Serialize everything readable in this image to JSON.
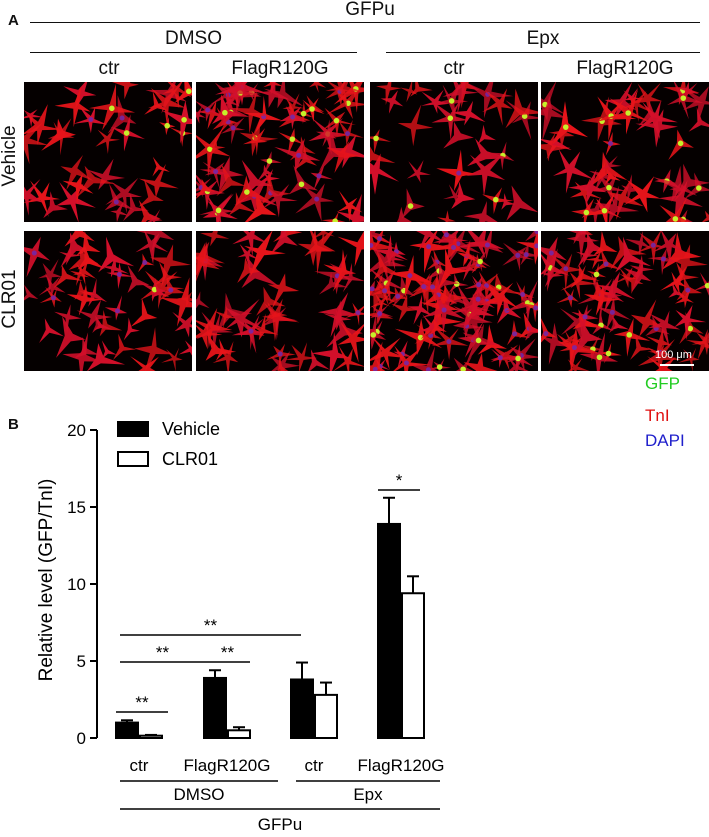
{
  "panel_a": {
    "letter": "A",
    "top_header": "GFPu",
    "treatment_groups": [
      "DMSO",
      "Epx"
    ],
    "column_labels": [
      "ctr",
      "FlagR120G",
      "ctr",
      "FlagR120G"
    ],
    "row_labels": [
      "Vehicle",
      "CLR01"
    ],
    "scale_bar": "100 μm",
    "stain_legend": [
      {
        "label": "GFP",
        "color": "#22cc22"
      },
      {
        "label": "TnI",
        "color": "#e01010"
      },
      {
        "label": "DAPI",
        "color": "#2020cc"
      }
    ]
  },
  "panel_b": {
    "letter": "B"
  },
  "chart_data": {
    "type": "bar",
    "ylabel": "Relative level (GFP/TnI)",
    "ylim": [
      0,
      20
    ],
    "yticks": [
      0,
      5,
      10,
      15,
      20
    ],
    "categories": [
      "ctr",
      "FlagR120G",
      "ctr",
      "FlagR120G"
    ],
    "group_labels": [
      "DMSO",
      "Epx"
    ],
    "outer_label": "GFPu",
    "legend_position": "top-left",
    "series": [
      {
        "name": "Vehicle",
        "fill": "#000000",
        "values": [
          1.0,
          3.9,
          3.8,
          13.9
        ],
        "errors": [
          0.15,
          0.5,
          1.1,
          1.7
        ]
      },
      {
        "name": "CLR01",
        "fill": "#ffffff",
        "values": [
          0.15,
          0.5,
          2.8,
          9.4
        ],
        "errors": [
          0.05,
          0.2,
          0.8,
          1.1
        ]
      }
    ],
    "significance": [
      {
        "label": "**"
      },
      {
        "label": "**"
      },
      {
        "label": "**"
      },
      {
        "label": "**"
      },
      {
        "label": "*"
      }
    ]
  }
}
